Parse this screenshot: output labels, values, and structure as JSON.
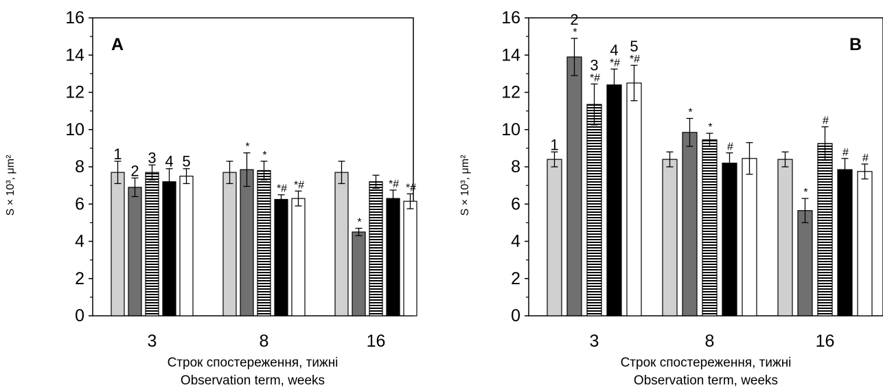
{
  "chart_data": [
    {
      "type": "bar",
      "panel_label": "A",
      "xlabel": [
        "Строк спостереження, тижні",
        "Observation term, weeks"
      ],
      "ylabel": "S × 10³, μm²",
      "ylim": [
        0,
        16
      ],
      "yticks": [
        "0",
        "2",
        "4",
        "6",
        "8",
        "10",
        "12",
        "14",
        "16"
      ],
      "categories": [
        "3",
        "8",
        "16"
      ],
      "series": [
        {
          "name": "1",
          "fill": "#d0d0d0",
          "values": [
            7.7,
            7.7,
            7.7
          ],
          "errors": [
            0.6,
            0.6,
            0.6
          ],
          "marks": [
            "",
            "",
            ""
          ]
        },
        {
          "name": "2",
          "fill": "#707070",
          "values": [
            6.9,
            7.85,
            4.5
          ],
          "errors": [
            0.5,
            0.9,
            0.2
          ],
          "marks": [
            "",
            "*",
            "*"
          ]
        },
        {
          "name": "3",
          "fill": "hatch",
          "values": [
            7.7,
            7.8,
            7.2
          ],
          "errors": [
            0.4,
            0.5,
            0.35
          ],
          "marks": [
            "",
            "*",
            ""
          ]
        },
        {
          "name": "4",
          "fill": "#000000",
          "values": [
            7.2,
            6.25,
            6.3
          ],
          "errors": [
            0.7,
            0.25,
            0.45
          ],
          "marks": [
            "",
            "*#",
            "*#"
          ]
        },
        {
          "name": "5",
          "fill": "#ffffff",
          "values": [
            7.5,
            6.3,
            6.15
          ],
          "errors": [
            0.4,
            0.4,
            0.4
          ],
          "marks": [
            "",
            "*#",
            "*#"
          ]
        }
      ]
    },
    {
      "type": "bar",
      "panel_label": "B",
      "xlabel": [
        "Строк спостереження, тижні",
        "Observation term, weeks"
      ],
      "ylabel": "S × 10³, μm²",
      "ylim": [
        0,
        16
      ],
      "yticks": [
        "0",
        "2",
        "4",
        "6",
        "8",
        "10",
        "12",
        "14",
        "16"
      ],
      "categories": [
        "3",
        "8",
        "16"
      ],
      "series": [
        {
          "name": "1",
          "fill": "#d0d0d0",
          "values": [
            8.4,
            8.4,
            8.4
          ],
          "errors": [
            0.4,
            0.4,
            0.4
          ],
          "marks": [
            "",
            "",
            ""
          ]
        },
        {
          "name": "2",
          "fill": "#707070",
          "values": [
            13.9,
            9.85,
            5.65
          ],
          "errors": [
            1.0,
            0.75,
            0.65
          ],
          "marks": [
            "*",
            "*",
            "*"
          ]
        },
        {
          "name": "3",
          "fill": "hatch",
          "values": [
            11.35,
            9.45,
            9.25
          ],
          "errors": [
            1.1,
            0.35,
            0.9
          ],
          "marks": [
            "*#",
            "*",
            "#"
          ]
        },
        {
          "name": "4",
          "fill": "#000000",
          "values": [
            12.4,
            8.2,
            7.85
          ],
          "errors": [
            0.85,
            0.55,
            0.6
          ],
          "marks": [
            "*#",
            "#",
            "#"
          ]
        },
        {
          "name": "5",
          "fill": "#ffffff",
          "values": [
            12.5,
            8.45,
            7.75
          ],
          "errors": [
            0.95,
            0.85,
            0.4
          ],
          "marks": [
            "*#",
            "",
            "#"
          ]
        }
      ]
    }
  ]
}
